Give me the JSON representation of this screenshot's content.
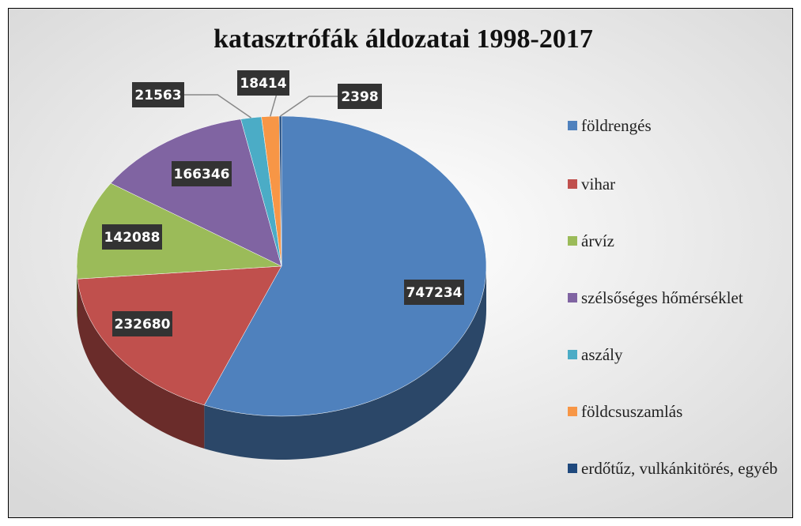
{
  "chart_data": {
    "type": "pie3d",
    "title": "katasztrófák áldozatai 1998-2017",
    "categories": [
      "földrengés",
      "vihar",
      "árvíz",
      "szélsőséges hőmérséklet",
      "aszály",
      "földcsuszamlás",
      "erdőtűz, vulkánkitörés, egyéb"
    ],
    "values": [
      747234,
      232680,
      142088,
      166346,
      21563,
      18414,
      2398
    ],
    "colors": [
      "#4f81bd",
      "#c0504d",
      "#9bbb59",
      "#8064a2",
      "#4bacc6",
      "#f79646",
      "#1f497d"
    ],
    "legend": "right"
  }
}
